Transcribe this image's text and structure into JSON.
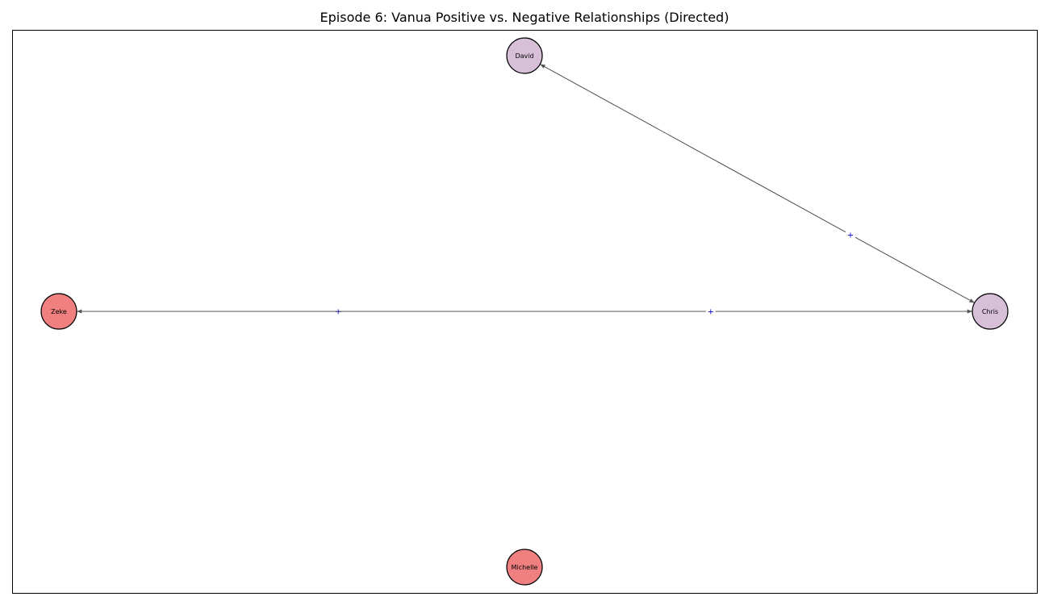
{
  "title": "Episode 6: Vanua Positive vs. Negative Relationships (Directed)",
  "colors": {
    "node_purple": "#d8bfd8",
    "node_red": "#f08080",
    "edge": "#555555",
    "positive_label": "#0000cc",
    "negative_label": "#ff9999"
  },
  "nodes": [
    {
      "id": "david",
      "label": "David",
      "color": "#d8bfd8"
    },
    {
      "id": "zeke",
      "label": "Zeke",
      "color": "#f08080"
    },
    {
      "id": "chris",
      "label": "Chris",
      "color": "#d8bfd8"
    },
    {
      "id": "michelle",
      "label": "Michelle",
      "color": "#f08080"
    }
  ],
  "edges": [
    {
      "from": "chris",
      "to": "david",
      "label": "-",
      "label_color": "#ff9999"
    },
    {
      "from": "david",
      "to": "chris",
      "label": "+",
      "label_color": "#0000cc"
    },
    {
      "from": "chris",
      "to": "zeke",
      "label": "+",
      "label_color": "#0000cc"
    },
    {
      "from": "zeke",
      "to": "chris",
      "label": "+",
      "label_color": "#0000cc"
    }
  ]
}
